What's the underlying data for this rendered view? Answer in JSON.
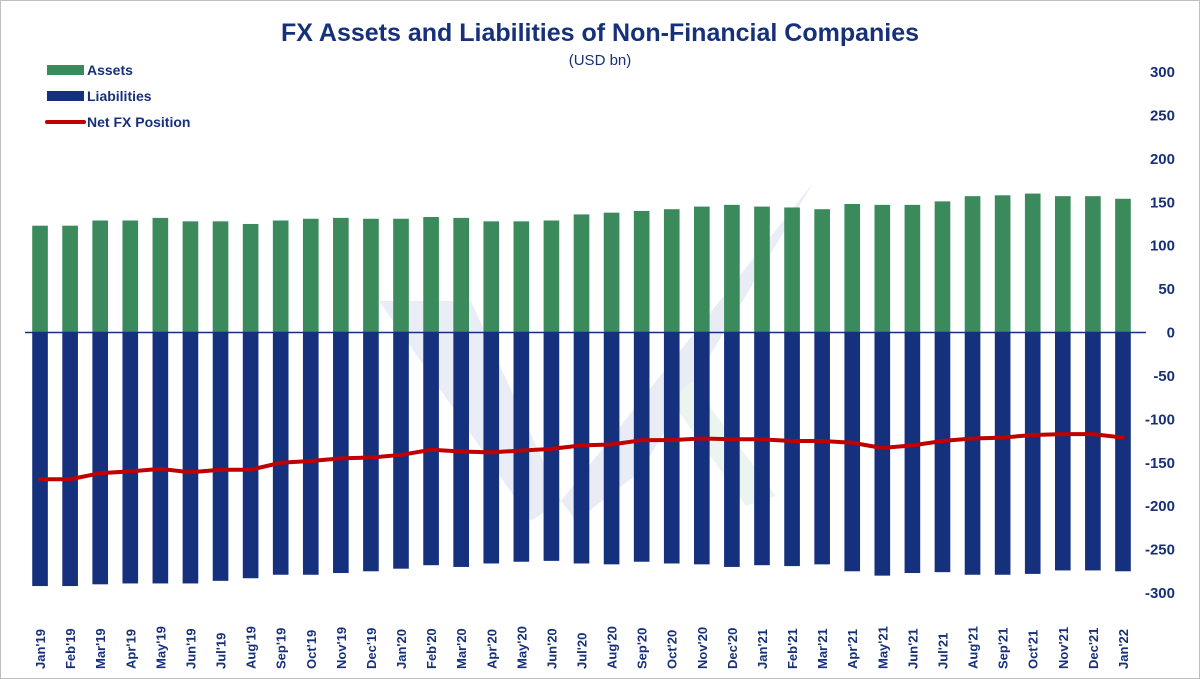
{
  "chart_data": {
    "type": "bar",
    "title": "FX Assets and Liabilities of Non-Financial Companies",
    "subtitle": "(USD bn)",
    "ylim": [
      -300,
      300
    ],
    "yticks": [
      300,
      250,
      200,
      150,
      100,
      50,
      0,
      -50,
      -100,
      -150,
      -200,
      -250,
      -300
    ],
    "legend_position": "top-left",
    "categories": [
      "Jan'19",
      "Feb'19",
      "Mar'19",
      "Apr'19",
      "May'19",
      "Jun'19",
      "Jul'19",
      "Aug'19",
      "Sep'19",
      "Oct'19",
      "Nov'19",
      "Dec'19",
      "Jan'20",
      "Feb'20",
      "Mar'20",
      "Apr'20",
      "May'20",
      "Jun'20",
      "Jul'20",
      "Aug'20",
      "Sep'20",
      "Oct'20",
      "Nov'20",
      "Dec'20",
      "Jan'21",
      "Feb'21",
      "Mar'21",
      "Apr'21",
      "May'21",
      "Jun'21",
      "Jul'21",
      "Aug'21",
      "Sep'21",
      "Oct'21",
      "Nov'21",
      "Dec'21",
      "Jan'22"
    ],
    "series": [
      {
        "name": "Assets",
        "kind": "bar",
        "color": "#3a8a5b",
        "values": [
          123,
          123,
          129,
          129,
          132,
          128,
          128,
          125,
          129,
          131,
          132,
          131,
          131,
          133,
          132,
          128,
          128,
          129,
          136,
          138,
          140,
          142,
          145,
          147,
          145,
          144,
          142,
          148,
          147,
          147,
          151,
          157,
          158,
          160,
          157,
          157,
          154
        ]
      },
      {
        "name": "Liabilities",
        "kind": "bar",
        "color": "#15317e",
        "values": [
          -292,
          -292,
          -290,
          -289,
          -289,
          -289,
          -286,
          -283,
          -279,
          -279,
          -277,
          -275,
          -272,
          -268,
          -270,
          -266,
          -264,
          -263,
          -266,
          -267,
          -264,
          -266,
          -267,
          -270,
          -268,
          -269,
          -267,
          -275,
          -280,
          -277,
          -276,
          -279,
          -279,
          -278,
          -274,
          -274,
          -275
        ]
      },
      {
        "name": "Net FX Position",
        "kind": "line",
        "color": "#c00000",
        "values": [
          -169,
          -169,
          -162,
          -160,
          -157,
          -161,
          -158,
          -158,
          -150,
          -148,
          -145,
          -144,
          -141,
          -135,
          -137,
          -138,
          -136,
          -134,
          -130,
          -129,
          -124,
          -124,
          -122,
          -123,
          -123,
          -125,
          -125,
          -127,
          -133,
          -130,
          -125,
          -122,
          -121,
          -118,
          -117,
          -117,
          -121
        ]
      }
    ]
  }
}
